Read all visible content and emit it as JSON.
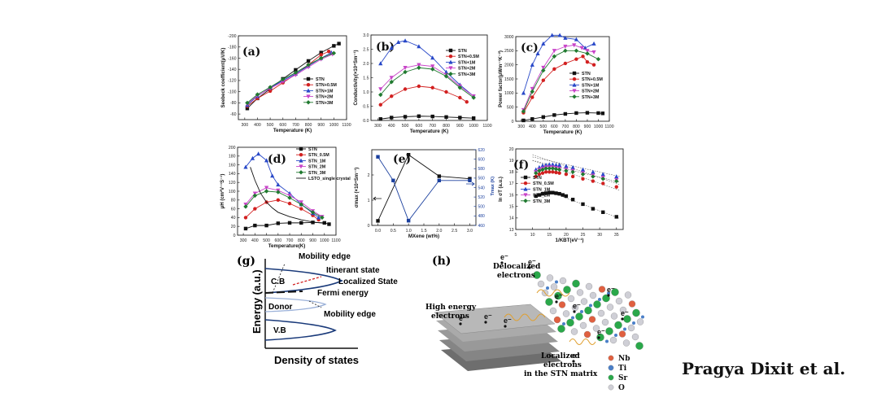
{
  "credit": "Pragya Dixit et al.",
  "colors": {
    "STN": "#111111",
    "STN+0.5M": "#d22020",
    "STN+1M": "#2848c8",
    "STN+2M": "#c844c8",
    "STN+3M": "#207a30",
    "LSTO": "#111111",
    "axis": "#222222",
    "right_axis": "#1a3f9e"
  },
  "chart_data": [
    {
      "panel": "(a)",
      "type": "line",
      "xlabel": "Temperature (K)",
      "ylabel": "Seebeck coefficient(μV/K)",
      "xlim": [
        250,
        1100
      ],
      "ylim": [
        -200,
        -50
      ],
      "y_reversed": true,
      "xticks": [
        "300",
        "400",
        "500",
        "600",
        "700",
        "800",
        "900",
        "1000",
        "1100"
      ],
      "yticks": [
        "-200",
        "-180",
        "-160",
        "-140",
        "-120",
        "-100",
        "-80",
        "-60"
      ],
      "legend_labels": [
        "STN",
        "STN+0.5M",
        "STN+1M",
        "STN+2M",
        "STN+3M"
      ],
      "series": [
        {
          "key": "STN",
          "x": [
            320,
            400,
            500,
            600,
            700,
            800,
            900,
            1000,
            1040
          ],
          "y": [
            -70,
            -88,
            -105,
            -123,
            -139,
            -155,
            -170,
            -182,
            -186
          ]
        },
        {
          "key": "STN+0.5M",
          "x": [
            320,
            400,
            500,
            600,
            700,
            800,
            900,
            960
          ],
          "y": [
            -74,
            -88,
            -101,
            -116,
            -131,
            -148,
            -166,
            -172
          ]
        },
        {
          "key": "STN+1M",
          "x": [
            320,
            400,
            500,
            600,
            700,
            800,
            900,
            980
          ],
          "y": [
            -76,
            -92,
            -107,
            -120,
            -132,
            -146,
            -160,
            -170
          ]
        },
        {
          "key": "STN+2M",
          "x": [
            320,
            400,
            500,
            600,
            700,
            800,
            900,
            990
          ],
          "y": [
            -78,
            -93,
            -106,
            -118,
            -130,
            -144,
            -158,
            -167
          ]
        },
        {
          "key": "STN+3M",
          "x": [
            320,
            400,
            500,
            600,
            700,
            800,
            900,
            1000
          ],
          "y": [
            -80,
            -95,
            -108,
            -122,
            -134,
            -148,
            -160,
            -169
          ]
        }
      ]
    },
    {
      "panel": "(b)",
      "type": "line",
      "xlabel": "Temperature (K)",
      "ylabel": "Conductivity(×10⁴Sm⁻¹)",
      "xlim": [
        250,
        1100
      ],
      "ylim": [
        0,
        3.0
      ],
      "xticks": [
        "300",
        "400",
        "500",
        "600",
        "700",
        "800",
        "900",
        "1000",
        "1100"
      ],
      "yticks": [
        "0.0",
        "0.5",
        "1.0",
        "1.5",
        "2.0",
        "2.5",
        "3.0"
      ],
      "legend_labels": [
        "STN",
        "STN+0.5M",
        "STN+1M",
        "STN+2M",
        "STN+3M"
      ],
      "series": [
        {
          "key": "STN",
          "x": [
            320,
            400,
            500,
            600,
            700,
            800,
            900,
            1000
          ],
          "y": [
            0.05,
            0.1,
            0.13,
            0.15,
            0.14,
            0.12,
            0.1,
            0.08
          ]
        },
        {
          "key": "STN+0.5M",
          "x": [
            320,
            400,
            500,
            600,
            700,
            800,
            900,
            950
          ],
          "y": [
            0.55,
            0.85,
            1.1,
            1.2,
            1.15,
            1.0,
            0.8,
            0.65
          ]
        },
        {
          "key": "STN+1M",
          "x": [
            320,
            400,
            450,
            500,
            600,
            700,
            800,
            900,
            1000
          ],
          "y": [
            2.0,
            2.55,
            2.75,
            2.8,
            2.6,
            2.2,
            1.7,
            1.25,
            0.85
          ]
        },
        {
          "key": "STN+2M",
          "x": [
            320,
            400,
            500,
            600,
            700,
            800,
            900,
            1000
          ],
          "y": [
            1.1,
            1.5,
            1.85,
            1.95,
            1.9,
            1.6,
            1.2,
            0.85
          ]
        },
        {
          "key": "STN+3M",
          "x": [
            320,
            400,
            500,
            600,
            700,
            800,
            900,
            1000
          ],
          "y": [
            0.9,
            1.35,
            1.7,
            1.85,
            1.8,
            1.55,
            1.15,
            0.8
          ]
        }
      ]
    },
    {
      "panel": "(c)",
      "type": "line",
      "xlabel": "Temperature (K)",
      "ylabel": "Power factor(μWm⁻¹K⁻²)",
      "xlim": [
        250,
        1100
      ],
      "ylim": [
        0,
        3000
      ],
      "xticks": [
        "300",
        "400",
        "500",
        "600",
        "700",
        "800",
        "900",
        "1000",
        "1100"
      ],
      "yticks": [
        "0",
        "500",
        "1000",
        "1500",
        "2000",
        "2500",
        "3000"
      ],
      "legend_labels": [
        "STN",
        "STN+0.5M",
        "STN+1M",
        "STN+2M",
        "STN+3M"
      ],
      "series": [
        {
          "key": "STN",
          "x": [
            320,
            400,
            500,
            600,
            700,
            800,
            900,
            1000,
            1040
          ],
          "y": [
            30,
            80,
            150,
            220,
            260,
            290,
            300,
            290,
            280
          ]
        },
        {
          "key": "STN+0.5M",
          "x": [
            320,
            400,
            500,
            600,
            700,
            800,
            860,
            900,
            960
          ],
          "y": [
            300,
            850,
            1450,
            1850,
            2050,
            2200,
            2300,
            2100,
            2000
          ]
        },
        {
          "key": "STN+1M",
          "x": [
            320,
            400,
            450,
            500,
            580,
            650,
            700,
            800,
            880,
            960
          ],
          "y": [
            1000,
            2000,
            2400,
            2750,
            3050,
            3050,
            2950,
            2900,
            2600,
            2750
          ]
        },
        {
          "key": "STN+2M",
          "x": [
            320,
            400,
            500,
            600,
            700,
            780,
            850,
            900,
            960
          ],
          "y": [
            400,
            1150,
            1900,
            2500,
            2650,
            2700,
            2600,
            2500,
            2450
          ]
        },
        {
          "key": "STN+3M",
          "x": [
            320,
            400,
            500,
            600,
            700,
            800,
            900,
            1000
          ],
          "y": [
            350,
            1050,
            1800,
            2300,
            2500,
            2500,
            2400,
            2200
          ]
        }
      ]
    },
    {
      "panel": "(d)",
      "type": "line",
      "xlabel": "Temperature(K)",
      "ylabel": "μH (cm²V⁻¹S⁻¹)",
      "xlim": [
        250,
        1100
      ],
      "ylim": [
        0,
        200
      ],
      "xticks": [
        "300",
        "400",
        "500",
        "600",
        "700",
        "800",
        "900",
        "1000",
        "1100"
      ],
      "yticks": [
        "0",
        "20",
        "40",
        "60",
        "80",
        "100",
        "120",
        "140",
        "160",
        "180",
        "200"
      ],
      "legend_labels": [
        "STN",
        "STN_0.5M",
        "STN_1M",
        "STN_2M",
        "STN_3M",
        "LSTO_single crystal"
      ],
      "series": [
        {
          "key": "STN",
          "x": [
            320,
            400,
            500,
            600,
            700,
            800,
            900,
            1000,
            1040
          ],
          "y": [
            15,
            22,
            22,
            27,
            28,
            28,
            29,
            28,
            25
          ]
        },
        {
          "key": "STN+0.5M",
          "x": [
            320,
            400,
            500,
            600,
            700,
            800,
            900,
            950
          ],
          "y": [
            40,
            60,
            75,
            80,
            72,
            60,
            45,
            35
          ]
        },
        {
          "key": "STN+1M",
          "x": [
            320,
            380,
            430,
            500,
            550,
            600,
            700,
            800,
            900,
            950
          ],
          "y": [
            155,
            175,
            185,
            170,
            135,
            115,
            95,
            70,
            50,
            40
          ]
        },
        {
          "key": "STN+2M",
          "x": [
            320,
            400,
            500,
            600,
            700,
            800,
            900,
            980
          ],
          "y": [
            70,
            95,
            108,
            102,
            90,
            75,
            55,
            42
          ]
        },
        {
          "key": "STN+3M",
          "x": [
            320,
            400,
            500,
            600,
            700,
            800,
            900,
            980
          ],
          "y": [
            65,
            90,
            100,
            98,
            85,
            70,
            52,
            40
          ]
        },
        {
          "key": "LSTO",
          "x": [
            360,
            400,
            450,
            500,
            550,
            600,
            700,
            800,
            900,
            1000
          ],
          "y": [
            155,
            125,
            95,
            75,
            62,
            52,
            42,
            35,
            30,
            27
          ]
        }
      ]
    },
    {
      "panel": "(e)",
      "type": "line",
      "xlabel": "MXene (wt%)",
      "ylabel": "σmax (×10⁴Sm⁻¹)",
      "ylabel_right": "Tmax (K)",
      "xlim": [
        -0.2,
        3.2
      ],
      "ylim": [
        0,
        3.0
      ],
      "ylim_right": [
        460,
        620
      ],
      "xticks": [
        "0.0",
        "0.5",
        "1.0",
        "1.5",
        "2.0",
        "2.5",
        "3.0"
      ],
      "yticks": [
        "0",
        "1",
        "2"
      ],
      "yticks_right": [
        "460",
        "480",
        "500",
        "520",
        "540",
        "560",
        "580",
        "600",
        "620"
      ],
      "series": [
        {
          "key": "sigma_max",
          "axis": "left",
          "x": [
            0.0,
            1.0,
            2.0,
            3.0
          ],
          "y": [
            0.18,
            2.8,
            1.95,
            1.85
          ]
        },
        {
          "key": "T_max",
          "axis": "right",
          "x": [
            0.0,
            0.5,
            1.0,
            2.0,
            3.0
          ],
          "y": [
            605,
            555,
            470,
            555,
            555
          ]
        }
      ]
    },
    {
      "panel": "(f)",
      "type": "scatter",
      "xlabel": "1/KBT(eV⁻¹)",
      "ylabel": "ln σT (a.u.)",
      "xlim": [
        5,
        37
      ],
      "ylim": [
        13,
        20
      ],
      "xticks": [
        "5",
        "10",
        "15",
        "20",
        "25",
        "30",
        "35"
      ],
      "yticks": [
        "13",
        "14",
        "15",
        "16",
        "17",
        "18",
        "19",
        "20"
      ],
      "legend_labels": [
        "STN",
        "STN_0.5M",
        "STN_1M",
        "STN_2M",
        "STN_3M"
      ],
      "series": [
        {
          "key": "STN",
          "x": [
            11,
            12,
            13,
            14,
            15,
            16,
            17,
            18,
            19,
            20,
            22,
            25,
            28,
            31,
            35
          ],
          "y": [
            15.9,
            16.0,
            16.1,
            16.15,
            16.2,
            16.2,
            16.15,
            16.1,
            16.0,
            15.9,
            15.6,
            15.2,
            14.8,
            14.5,
            14.1
          ]
        },
        {
          "key": "STN+0.5M",
          "x": [
            11,
            12,
            13,
            14,
            15,
            16,
            17,
            18,
            20,
            22,
            25,
            28,
            31,
            35
          ],
          "y": [
            17.6,
            17.8,
            17.9,
            18.0,
            18.0,
            18.0,
            17.95,
            17.9,
            17.8,
            17.6,
            17.4,
            17.2,
            17.0,
            16.7
          ]
        },
        {
          "key": "STN+1M",
          "x": [
            11,
            12,
            13,
            14,
            15,
            16,
            17,
            18,
            20,
            22,
            25,
            28,
            31,
            35
          ],
          "y": [
            18.2,
            18.4,
            18.55,
            18.6,
            18.65,
            18.65,
            18.6,
            18.6,
            18.5,
            18.4,
            18.2,
            18.0,
            17.8,
            17.6
          ]
        },
        {
          "key": "STN+2M",
          "x": [
            11,
            12,
            13,
            14,
            15,
            16,
            17,
            18,
            20,
            22,
            25,
            28,
            31,
            35
          ],
          "y": [
            18.0,
            18.2,
            18.3,
            18.4,
            18.4,
            18.4,
            18.35,
            18.3,
            18.2,
            18.1,
            17.9,
            17.7,
            17.5,
            17.3
          ]
        },
        {
          "key": "STN+3M",
          "x": [
            11,
            12,
            13,
            14,
            15,
            16,
            17,
            18,
            20,
            22,
            25,
            28,
            31,
            35
          ],
          "y": [
            17.9,
            18.1,
            18.2,
            18.3,
            18.3,
            18.3,
            18.25,
            18.2,
            18.1,
            18.0,
            17.8,
            17.6,
            17.4,
            17.2
          ]
        }
      ]
    }
  ],
  "diagram_g": {
    "panel": "(g)",
    "ylabel": "Energy (a.u.)",
    "xlabel": "Density of states",
    "labels": {
      "cb": "C.B",
      "vb": "V.B",
      "donor": "Donor",
      "mobility_top": "Mobility edge",
      "itinerant": "Itinerant state",
      "localized": "Localized State",
      "fermi": "Fermi energy",
      "mobility_bottom": "Mobility edge"
    }
  },
  "diagram_h": {
    "panel": "(h)",
    "labels": {
      "delocalized": "Delocalized electrons",
      "high_energy": "High energy electrons",
      "localized": "Localized electrons in the STN matrix",
      "electron": "e⁻"
    },
    "legend": [
      {
        "label": "Nb",
        "color": "#e06040"
      },
      {
        "label": "Ti",
        "color": "#4a7fc8"
      },
      {
        "label": "Sr",
        "color": "#2aa84a"
      },
      {
        "label": "O",
        "color": "#cfcfd6"
      }
    ]
  }
}
